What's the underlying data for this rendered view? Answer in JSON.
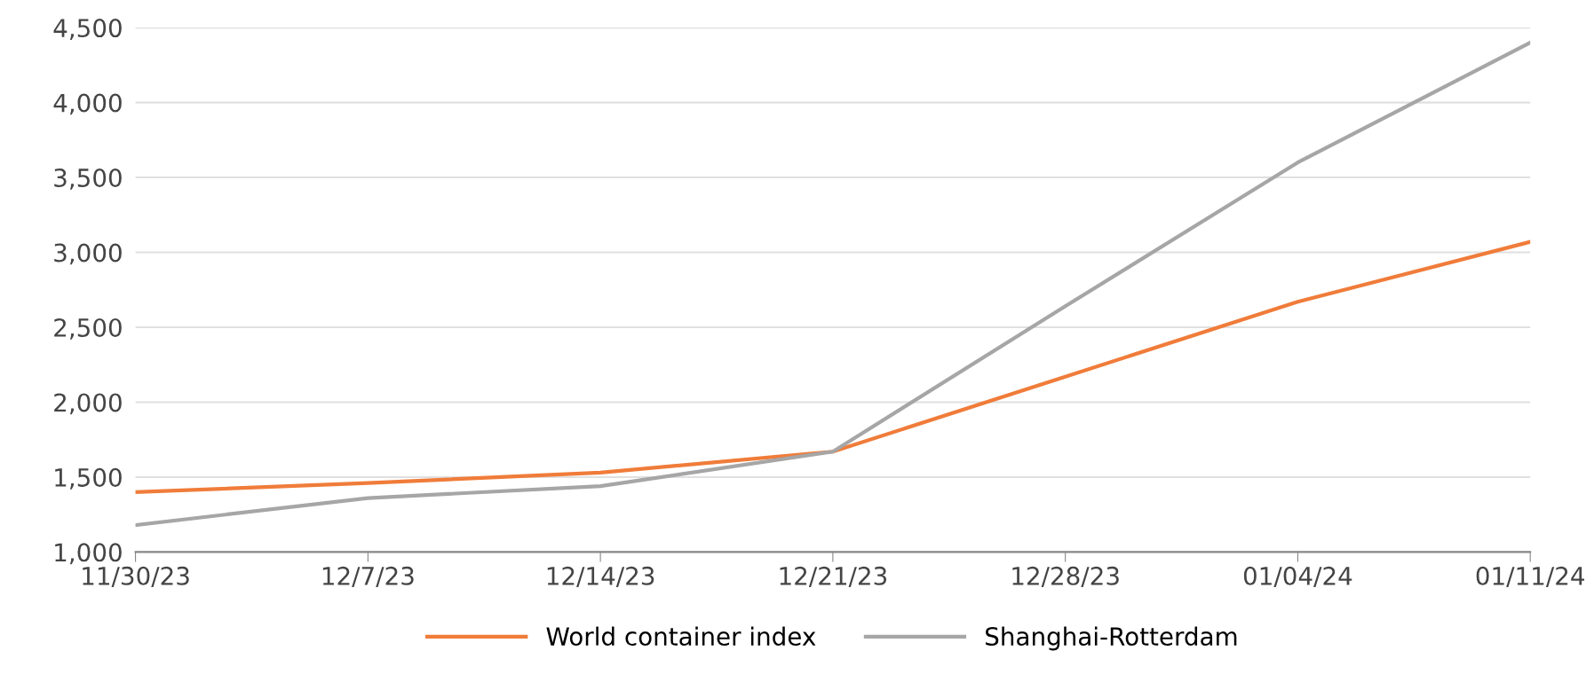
{
  "chart_data": {
    "type": "line",
    "categories": [
      "11/30/23",
      "12/7/23",
      "12/14/23",
      "12/21/23",
      "12/28/23",
      "01/04/24",
      "01/11/24"
    ],
    "series": [
      {
        "name": "World container index",
        "color": "#f07c3a",
        "values": [
          1400,
          1460,
          1530,
          1670,
          2170,
          2670,
          3070
        ]
      },
      {
        "name": "Shanghai-Rotterdam",
        "color": "#a6a6a6",
        "values": [
          1180,
          1360,
          1440,
          1670,
          2640,
          3600,
          4400
        ]
      }
    ],
    "ylim": [
      1000,
      4500
    ],
    "yticks": [
      {
        "value": 1000,
        "label": "1,000"
      },
      {
        "value": 1500,
        "label": "1,500"
      },
      {
        "value": 2000,
        "label": "2,000"
      },
      {
        "value": 2500,
        "label": "2,500"
      },
      {
        "value": 3000,
        "label": "3,000"
      },
      {
        "value": 3500,
        "label": "3,500"
      },
      {
        "value": 4000,
        "label": "4,000"
      },
      {
        "value": 4500,
        "label": "4,500"
      }
    ],
    "grid": "y",
    "legend": "bottom",
    "marker": "none",
    "line_style": "solid"
  }
}
